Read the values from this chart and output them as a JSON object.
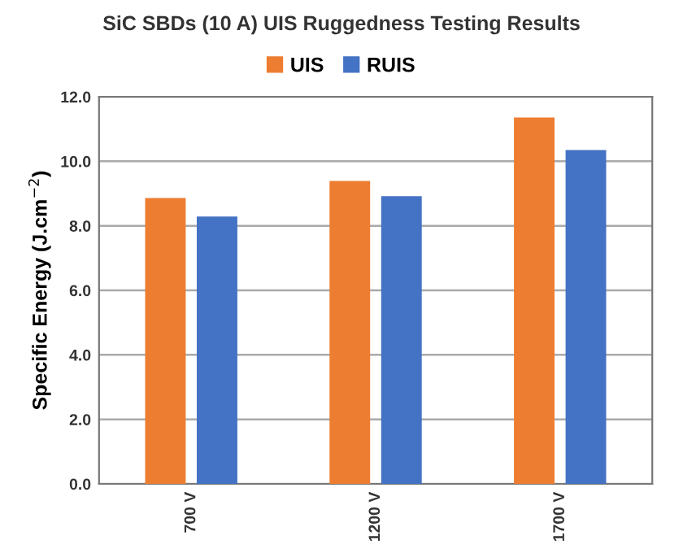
{
  "chart_data": {
    "type": "bar",
    "title": "SiC SBDs (10 A) UIS Ruggedness Testing Results",
    "ylabel": "Specific Energy (J.cm$^{−2}$)",
    "categories": [
      "700 V",
      "1200 V",
      "1700 V"
    ],
    "series": [
      {
        "name": "UIS",
        "color": "#ed7d31",
        "values": [
          8.86,
          9.39,
          11.36
        ]
      },
      {
        "name": "RUIS",
        "color": "#4472c4",
        "values": [
          8.29,
          8.92,
          10.35
        ]
      }
    ],
    "ylim": [
      0,
      12
    ],
    "yticks": [
      {
        "value": 0,
        "label": "0.0"
      },
      {
        "value": 2,
        "label": "2.0"
      },
      {
        "value": 4,
        "label": "4.0"
      },
      {
        "value": 6,
        "label": "6.0"
      },
      {
        "value": 8,
        "label": "8.0"
      },
      {
        "value": 10,
        "label": "10.0"
      },
      {
        "value": 12,
        "label": "12.0"
      }
    ],
    "grid": "y",
    "legend": "top"
  }
}
